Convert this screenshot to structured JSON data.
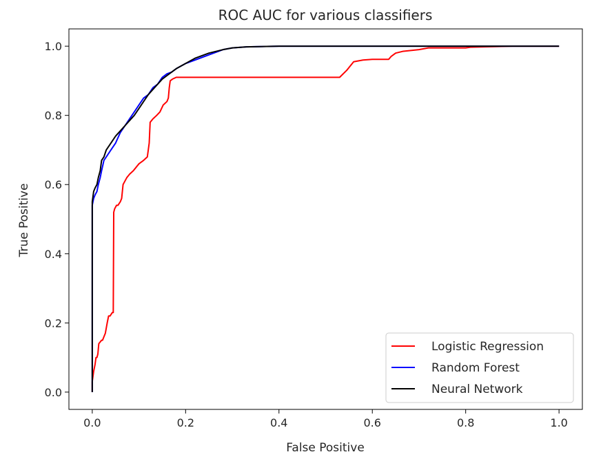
{
  "chart_data": {
    "type": "line",
    "title": "ROC AUC for various classifiers",
    "xlabel": "False Positive",
    "ylabel": "True Positive",
    "xlim": [
      -0.05,
      1.05
    ],
    "ylim": [
      -0.05,
      1.05
    ],
    "xticks": [
      "0.0",
      "0.2",
      "0.4",
      "0.6",
      "0.8",
      "1.0"
    ],
    "yticks": [
      "0.0",
      "0.2",
      "0.4",
      "0.6",
      "0.8",
      "1.0"
    ],
    "grid": false,
    "legend_position": "lower-right",
    "series": [
      {
        "name": "Logistic Regression",
        "color": "#ff0000",
        "x": [
          0,
          0,
          0.003,
          0.006,
          0.008,
          0.01,
          0.012,
          0.014,
          0.02,
          0.022,
          0.028,
          0.032,
          0.035,
          0.038,
          0.043,
          0.045,
          0.046,
          0.048,
          0.052,
          0.055,
          0.06,
          0.063,
          0.066,
          0.07,
          0.074,
          0.08,
          0.088,
          0.1,
          0.11,
          0.118,
          0.12,
          0.122,
          0.124,
          0.13,
          0.138,
          0.145,
          0.152,
          0.16,
          0.163,
          0.165,
          0.167,
          0.172,
          0.18,
          0.2,
          0.3,
          0.4,
          0.5,
          0.53,
          0.545,
          0.56,
          0.58,
          0.6,
          0.635,
          0.64,
          0.65,
          0.665,
          0.7,
          0.72,
          0.8,
          0.81,
          0.9,
          1.0
        ],
        "y": [
          0,
          0.03,
          0.06,
          0.08,
          0.1,
          0.1,
          0.11,
          0.14,
          0.15,
          0.15,
          0.17,
          0.2,
          0.22,
          0.22,
          0.23,
          0.23,
          0.52,
          0.53,
          0.54,
          0.54,
          0.55,
          0.56,
          0.6,
          0.61,
          0.62,
          0.63,
          0.64,
          0.66,
          0.67,
          0.68,
          0.7,
          0.72,
          0.78,
          0.79,
          0.8,
          0.81,
          0.83,
          0.84,
          0.85,
          0.88,
          0.9,
          0.905,
          0.91,
          0.91,
          0.91,
          0.91,
          0.91,
          0.91,
          0.93,
          0.955,
          0.96,
          0.962,
          0.962,
          0.97,
          0.98,
          0.985,
          0.99,
          0.995,
          0.995,
          0.997,
          1.0,
          1.0
        ]
      },
      {
        "name": "Random Forest",
        "color": "#0000ff",
        "x": [
          0,
          0,
          0.003,
          0.006,
          0.01,
          0.013,
          0.017,
          0.02,
          0.025,
          0.03,
          0.04,
          0.05,
          0.06,
          0.07,
          0.08,
          0.09,
          0.1,
          0.11,
          0.12,
          0.13,
          0.14,
          0.15,
          0.16,
          0.17,
          0.18,
          0.2,
          0.22,
          0.25,
          0.28,
          0.3,
          0.33,
          0.4,
          0.5,
          0.6,
          0.8,
          1.0
        ],
        "y": [
          0,
          0.54,
          0.56,
          0.57,
          0.58,
          0.6,
          0.62,
          0.64,
          0.67,
          0.68,
          0.7,
          0.72,
          0.75,
          0.77,
          0.79,
          0.81,
          0.83,
          0.85,
          0.86,
          0.88,
          0.89,
          0.91,
          0.92,
          0.925,
          0.935,
          0.95,
          0.96,
          0.975,
          0.99,
          0.995,
          0.998,
          1.0,
          1.0,
          1.0,
          1.0,
          1.0
        ]
      },
      {
        "name": "Neural Network",
        "color": "#000000",
        "x": [
          0,
          0,
          0.003,
          0.006,
          0.01,
          0.013,
          0.017,
          0.02,
          0.025,
          0.03,
          0.04,
          0.05,
          0.06,
          0.07,
          0.08,
          0.09,
          0.1,
          0.11,
          0.12,
          0.13,
          0.14,
          0.15,
          0.16,
          0.17,
          0.18,
          0.2,
          0.22,
          0.25,
          0.28,
          0.3,
          0.33,
          0.4,
          0.5,
          0.6,
          0.8,
          1.0
        ],
        "y": [
          0,
          0.55,
          0.58,
          0.59,
          0.6,
          0.62,
          0.64,
          0.67,
          0.68,
          0.7,
          0.72,
          0.74,
          0.755,
          0.77,
          0.785,
          0.8,
          0.82,
          0.84,
          0.86,
          0.875,
          0.89,
          0.905,
          0.915,
          0.925,
          0.935,
          0.95,
          0.965,
          0.98,
          0.99,
          0.995,
          0.998,
          1.0,
          1.0,
          1.0,
          1.0,
          1.0
        ]
      }
    ]
  }
}
